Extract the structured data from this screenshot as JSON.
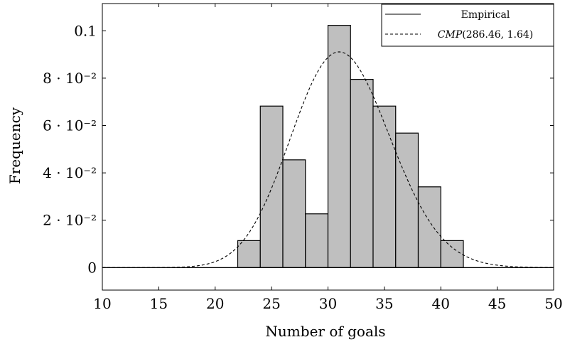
{
  "chart_data": {
    "type": "bar",
    "title": "",
    "xlabel": "Number of goals",
    "ylabel": "Frequency",
    "xlim": [
      10,
      50
    ],
    "ylim": [
      -0.0095,
      0.1115
    ],
    "x_ticks": [
      10,
      15,
      20,
      25,
      30,
      35,
      40,
      45,
      50
    ],
    "y_ticks": [
      {
        "value": 0,
        "label": "0"
      },
      {
        "value": 0.02,
        "label": "2 · 10⁻²"
      },
      {
        "value": 0.04,
        "label": "4 · 10⁻²"
      },
      {
        "value": 0.06,
        "label": "6 · 10⁻²"
      },
      {
        "value": 0.08,
        "label": "8 · 10⁻²"
      },
      {
        "value": 0.1,
        "label": "0.1"
      }
    ],
    "histogram": {
      "bin_width": 2,
      "bins": [
        {
          "start": 22,
          "end": 24,
          "value": 0.0114
        },
        {
          "start": 24,
          "end": 26,
          "value": 0.0682
        },
        {
          "start": 26,
          "end": 28,
          "value": 0.0455
        },
        {
          "start": 28,
          "end": 30,
          "value": 0.0227
        },
        {
          "start": 30,
          "end": 32,
          "value": 0.1023
        },
        {
          "start": 32,
          "end": 34,
          "value": 0.0795
        },
        {
          "start": 34,
          "end": 36,
          "value": 0.0682
        },
        {
          "start": 36,
          "end": 38,
          "value": 0.0568
        },
        {
          "start": 38,
          "end": 40,
          "value": 0.0341
        },
        {
          "start": 40,
          "end": 42,
          "value": 0.0114
        }
      ]
    },
    "series": [
      {
        "name": "Empirical",
        "style": "solid"
      },
      {
        "name": "CMP(286.46, 1.64)",
        "style": "dashed",
        "distribution": "CMP",
        "lambda": 286.46,
        "nu": 1.64
      }
    ],
    "legend": {
      "placement": "top-right",
      "empirical_label": "Empirical",
      "cmp_name": "CMP",
      "cmp_params": "(286.46, 1.64)"
    },
    "colors": {
      "bar_fill": "#bfbfbf",
      "stroke": "#000000"
    },
    "grid": false
  }
}
